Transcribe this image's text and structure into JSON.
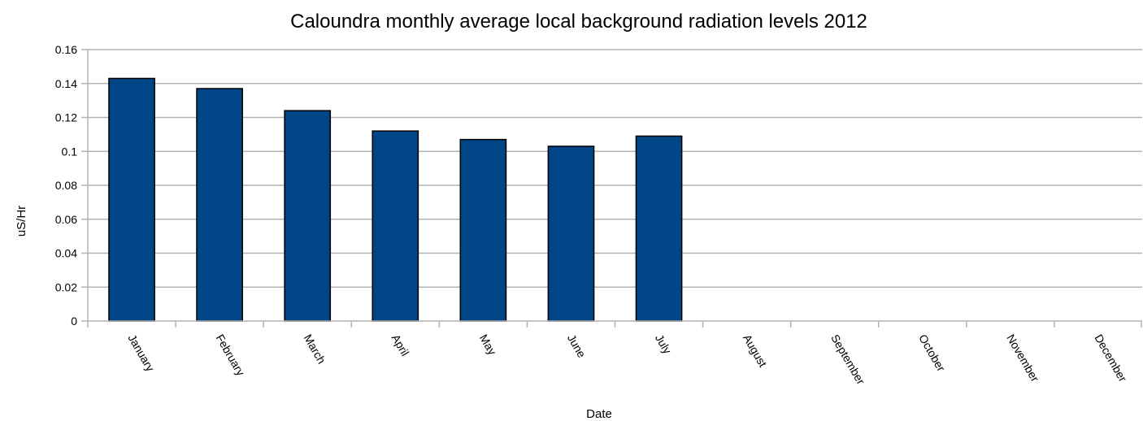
{
  "chart_data": {
    "type": "bar",
    "title": "Caloundra monthly average local background radiation levels 2012",
    "xlabel": "Date",
    "ylabel": "uS/Hr",
    "ylim": [
      0,
      0.16
    ],
    "yticks": [
      "0",
      "0.02",
      "0.04",
      "0.06",
      "0.08",
      "0.1",
      "0.12",
      "0.14",
      "0.16"
    ],
    "categories": [
      "January",
      "February",
      "March",
      "April",
      "May",
      "June",
      "July",
      "August",
      "September",
      "October",
      "November",
      "December"
    ],
    "values": [
      0.143,
      0.137,
      0.124,
      0.112,
      0.107,
      0.103,
      0.109,
      null,
      null,
      null,
      null,
      null
    ],
    "grid": true,
    "legend": "none",
    "colors": {
      "bar": "#004586",
      "grid": "#b3b3b3"
    }
  }
}
